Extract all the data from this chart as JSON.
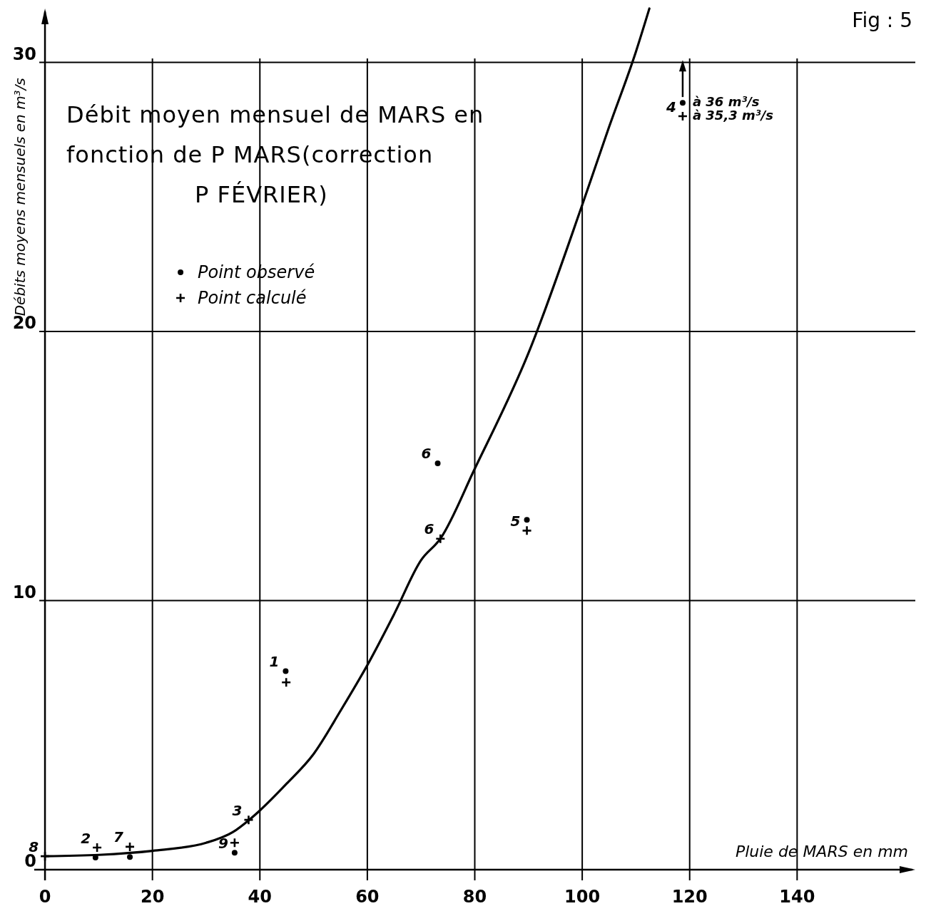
{
  "chart_data": {
    "type": "scatter",
    "title": "Débit moyen mensuel de MARS en fonction de P MARS(correction P FÉVRIER)",
    "xlabel": "Pluie de MARS en mm",
    "ylabel": "Débits moyens mensuels en m³/s",
    "xlim": [
      -2,
      162
    ],
    "ylim": [
      0,
      32
    ],
    "xticks": [
      0,
      20,
      40,
      60,
      80,
      100,
      120,
      140
    ],
    "yticks": [
      0,
      10,
      20,
      30
    ],
    "grid": true,
    "legend": "top left",
    "marker": "circle",
    "series": [
      {
        "name": "Point observé",
        "color": "#000000",
        "x": [
          9.4,
          15.8,
          35.3,
          44.8,
          73.1,
          89.7,
          118.7
        ],
        "values": [
          0.45,
          0.47,
          0.63,
          7.38,
          15.1,
          13.0,
          28.5
        ]
      },
      {
        "name": "Point calculé",
        "marker": "cross",
        "color": "#000000",
        "x": [
          0,
          9.7,
          15.8,
          35.3,
          37.9,
          44.9,
          73.6,
          89.7,
          118.7
        ],
        "values": [
          0.5,
          0.82,
          0.85,
          1.0,
          1.85,
          6.96,
          12.3,
          12.6,
          28.0
        ]
      },
      {
        "type": "line",
        "marker": "none",
        "color": "#000000",
        "x": [
          0,
          10,
          20,
          30,
          35,
          38,
          40,
          45,
          50,
          55,
          60,
          65,
          70,
          73.6,
          80,
          90,
          100,
          105,
          110,
          112.5
        ],
        "values": [
          0.5,
          0.55,
          0.7,
          1.0,
          1.4,
          1.85,
          2.2,
          3.2,
          4.3,
          5.9,
          7.6,
          9.5,
          11.5,
          12.3,
          14.9,
          19.2,
          24.7,
          27.6,
          30.4,
          32
        ]
      }
    ],
    "annotations": [
      "Fig : 5",
      {
        "text": "8",
        "x": 0,
        "y": 0.5
      },
      {
        "text": "2",
        "x": 9.7,
        "y": 0.82
      },
      {
        "text": "7",
        "x": 15.8,
        "y": 0.85
      },
      {
        "text": "9",
        "x": 35.3,
        "y": 0.63
      },
      {
        "text": "3",
        "x": 37.9,
        "y": 1.85
      },
      {
        "text": "1",
        "x": 44.8,
        "y": 7.38
      },
      {
        "text": "6",
        "x": 73.1,
        "y": 15.1
      },
      {
        "text": "6",
        "x": 73.6,
        "y": 12.3
      },
      {
        "text": "5",
        "x": 89.7,
        "y": 12.6
      },
      {
        "text": "4",
        "x": 118.7,
        "y": 28.0
      },
      {
        "text": "à 36 m³/s",
        "x": 118.7,
        "y": 28.5
      },
      {
        "text": "à 35,3 m³/s",
        "x": 118.7,
        "y": 28.0
      }
    ]
  }
}
